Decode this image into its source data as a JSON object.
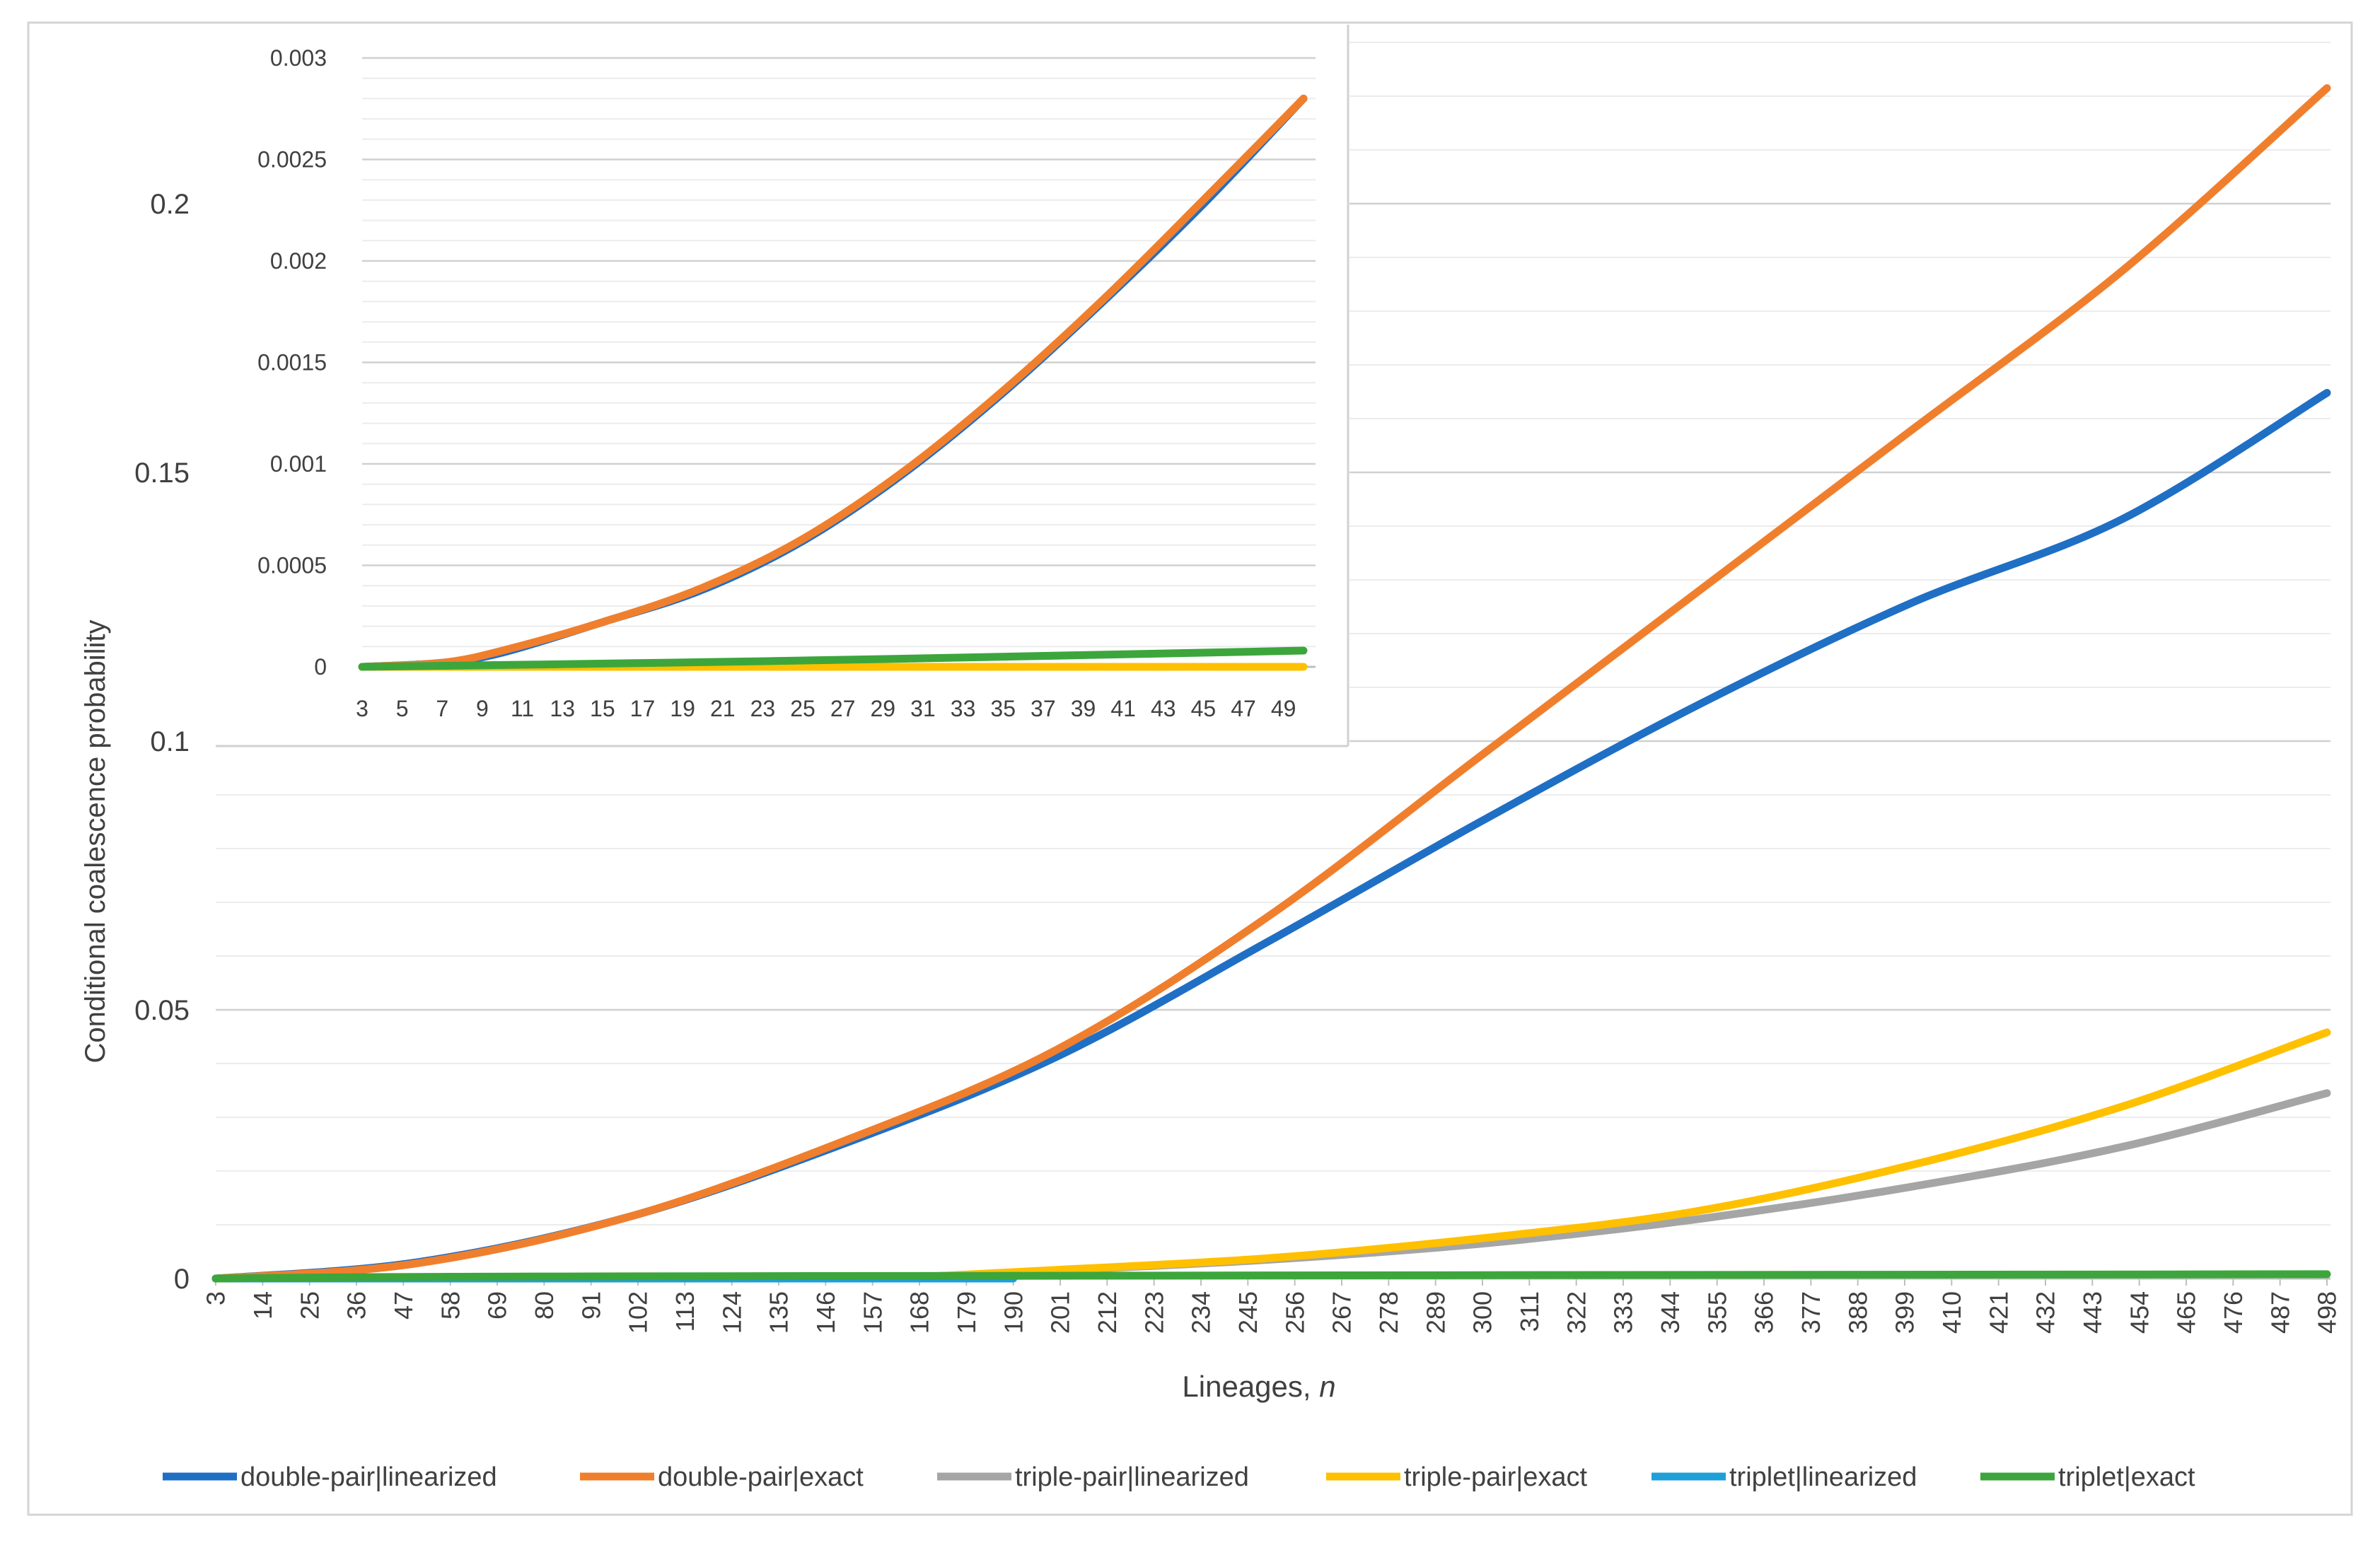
{
  "chart_data": [
    {
      "type": "line",
      "title": "",
      "xlabel": "Lineages, ",
      "xlabel_italic": "n",
      "ylabel": "Conditional coalescence probability",
      "xlim": [
        3,
        498
      ],
      "ylim": [
        0,
        0.23
      ],
      "yticks": [
        0,
        0.05,
        0.1,
        0.15,
        0.2
      ],
      "ytick_labels": [
        "0",
        "0.05",
        "0.1",
        "0.15",
        "0.2"
      ],
      "xtick_labels": [
        "3",
        "14",
        "25",
        "36",
        "47",
        "58",
        "69",
        "80",
        "91",
        "102",
        "113",
        "124",
        "135",
        "146",
        "157",
        "168",
        "179",
        "190",
        "201",
        "212",
        "223",
        "234",
        "245",
        "256",
        "267",
        "278",
        "289",
        "300",
        "311",
        "322",
        "333",
        "344",
        "355",
        "366",
        "377",
        "388",
        "399",
        "410",
        "421",
        "432",
        "443",
        "454",
        "465",
        "476",
        "487",
        "498"
      ],
      "grid": true,
      "legend": "bottom",
      "series": [
        {
          "name": "double-pair|linearized",
          "color": "#1f6fc5",
          "points": [
            [
              3,
              0
            ],
            [
              50,
              0.003
            ],
            [
              100,
              0.0115
            ],
            [
              150,
              0.025
            ],
            [
              200,
              0.0412
            ],
            [
              250,
              0.0628
            ],
            [
              300,
              0.0852
            ],
            [
              350,
              0.1065
            ],
            [
              400,
              0.1255
            ],
            [
              450,
              0.1413
            ],
            [
              498,
              0.1648
            ]
          ]
        },
        {
          "name": "double-pair|exact",
          "color": "#f07f2d",
          "points": [
            [
              3,
              0
            ],
            [
              50,
              0.0028
            ],
            [
              100,
              0.0115
            ],
            [
              150,
              0.0255
            ],
            [
              200,
              0.0425
            ],
            [
              250,
              0.0675
            ],
            [
              300,
              0.0975
            ],
            [
              350,
              0.1275
            ],
            [
              400,
              0.1575
            ],
            [
              450,
              0.1875
            ],
            [
              498,
              0.2215
            ]
          ]
        },
        {
          "name": "triple-pair|linearized",
          "color": "#a5a5a5",
          "points": [
            [
              168,
              0.0003
            ],
            [
              200,
              0.0015
            ],
            [
              250,
              0.0035
            ],
            [
              300,
              0.0065
            ],
            [
              350,
              0.011
            ],
            [
              400,
              0.017
            ],
            [
              450,
              0.0245
            ],
            [
              498,
              0.0345
            ]
          ]
        },
        {
          "name": "triple-pair|exact",
          "color": "#ffc000",
          "points": [
            [
              168,
              0.0003
            ],
            [
              200,
              0.0016
            ],
            [
              250,
              0.0038
            ],
            [
              300,
              0.0075
            ],
            [
              350,
              0.0125
            ],
            [
              400,
              0.021
            ],
            [
              450,
              0.032
            ],
            [
              498,
              0.0458
            ]
          ]
        },
        {
          "name": "triplet|linearized",
          "color": "#1e9fd9",
          "points": [
            [
              3,
              0
            ],
            [
              190,
              0
            ]
          ]
        },
        {
          "name": "triplet|exact",
          "color": "#3ca63c",
          "points": [
            [
              3,
              0
            ],
            [
              91,
              0.0004
            ],
            [
              498,
              0.0008
            ]
          ]
        }
      ]
    },
    {
      "type": "line",
      "inset": true,
      "xlim": [
        3,
        50
      ],
      "ylim": [
        0,
        0.003
      ],
      "yticks": [
        0,
        0.0005,
        0.001,
        0.0015,
        0.002,
        0.0025,
        0.003
      ],
      "ytick_labels": [
        "0",
        "0.0005",
        "0.001",
        "0.0015",
        "0.002",
        "0.0025",
        "0.003"
      ],
      "xtick_labels": [
        "3",
        "5",
        "7",
        "9",
        "11",
        "13",
        "15",
        "17",
        "19",
        "21",
        "23",
        "25",
        "27",
        "29",
        "31",
        "33",
        "35",
        "37",
        "39",
        "41",
        "43",
        "45",
        "47",
        "49"
      ],
      "grid": true,
      "series": [
        {
          "name": "double-pair|linearized",
          "color": "#1f6fc5",
          "points": [
            [
              3,
              0
            ],
            [
              7,
              2e-05
            ],
            [
              10,
              7e-05
            ],
            [
              15,
              0.00022
            ],
            [
              20,
              0.00038
            ],
            [
              25,
              0.00062
            ],
            [
              30,
              0.00095
            ],
            [
              35,
              0.00135
            ],
            [
              40,
              0.0018
            ],
            [
              45,
              0.00228
            ],
            [
              50,
              0.0028
            ]
          ]
        },
        {
          "name": "double-pair|exact",
          "color": "#f07f2d",
          "points": [
            [
              3,
              0
            ],
            [
              7,
              2e-05
            ],
            [
              10,
              8e-05
            ],
            [
              15,
              0.00022
            ],
            [
              20,
              0.00039
            ],
            [
              25,
              0.00063
            ],
            [
              30,
              0.00096
            ],
            [
              35,
              0.00136
            ],
            [
              40,
              0.00181
            ],
            [
              45,
              0.0023
            ],
            [
              50,
              0.0028
            ]
          ]
        },
        {
          "name": "triple-pair|exact",
          "color": "#ffc000",
          "points": [
            [
              3,
              0
            ],
            [
              50,
              0
            ]
          ]
        },
        {
          "name": "triplet|exact",
          "color": "#3ca63c",
          "points": [
            [
              3,
              0
            ],
            [
              18,
              2e-05
            ],
            [
              30,
              4e-05
            ],
            [
              50,
              8e-05
            ]
          ]
        }
      ]
    }
  ]
}
